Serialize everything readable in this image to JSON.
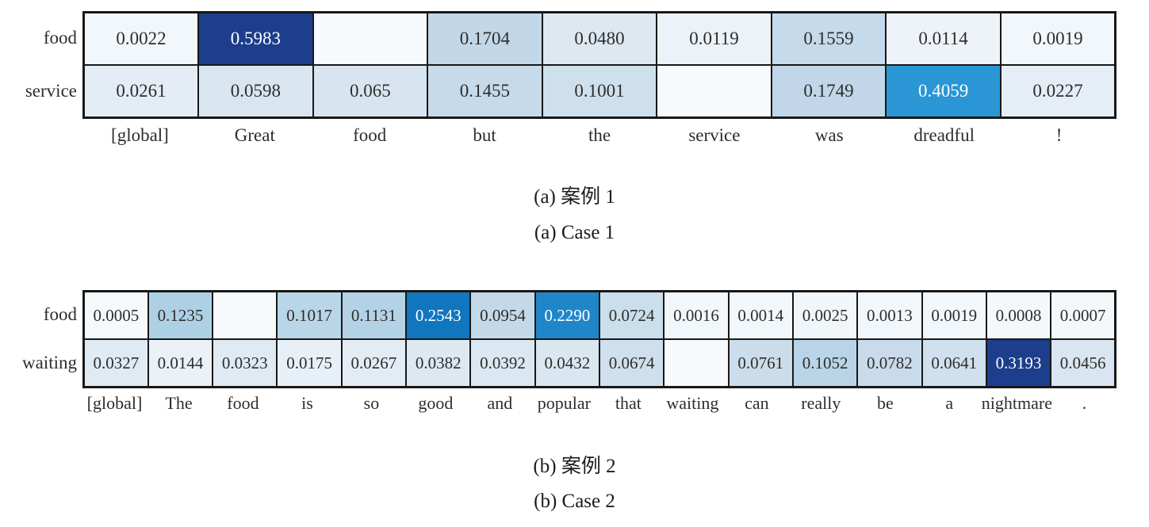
{
  "chart_data": [
    {
      "type": "heatmap",
      "panel": "a",
      "caption_zh": "(a) 案例 1",
      "caption_en": "(a) Case 1",
      "x_labels": [
        "[global]",
        "Great",
        "food",
        "but",
        "the",
        "service",
        "was",
        "dreadful",
        "!"
      ],
      "y_labels": [
        "food",
        "service"
      ],
      "values": [
        [
          0.0022,
          0.5983,
          null,
          0.1704,
          0.048,
          0.0119,
          0.1559,
          0.0114,
          0.0019
        ],
        [
          0.0261,
          0.0598,
          0.065,
          0.1455,
          0.1001,
          null,
          0.1749,
          0.4059,
          0.0227
        ]
      ],
      "value_labels": [
        [
          "0.0022",
          "0.5983",
          "",
          "0.1704",
          "0.0480",
          "0.0119",
          "0.1559",
          "0.0114",
          "0.0019"
        ],
        [
          "0.0261",
          "0.0598",
          "0.065",
          "0.1455",
          "0.1001",
          "",
          "0.1749",
          "0.4059",
          "0.0227"
        ]
      ],
      "cell_colors": [
        [
          "#f2f7fb",
          "#1c3e8c",
          "#f6fafc",
          "#c2d8e9",
          "#dde8f1",
          "#ebf2f8",
          "#c5daea",
          "#edf3f9",
          "#f2f7fb"
        ],
        [
          "#e4edf5",
          "#d9e6f0",
          "#d8e5f0",
          "#c6daea",
          "#cfe0ed",
          "#f6fafc",
          "#c1d7e9",
          "#2a96d5",
          "#e5eef6"
        ]
      ],
      "colormap": "Blues",
      "grid_border_color": "#181818",
      "dark_cell_text_color": "#ffffff",
      "light_cell_text_color": "#2e2d2b"
    },
    {
      "type": "heatmap",
      "panel": "b",
      "caption_zh": "(b) 案例 2",
      "caption_en": "(b) Case 2",
      "x_labels": [
        "[global]",
        "The",
        "food",
        "is",
        "so",
        "good",
        "and",
        "popular",
        "that",
        "waiting",
        "can",
        "really",
        "be",
        "a",
        "nightmare",
        "."
      ],
      "y_labels": [
        "food",
        "waiting"
      ],
      "values": [
        [
          0.0005,
          0.1235,
          null,
          0.1017,
          0.1131,
          0.2543,
          0.0954,
          0.229,
          0.0724,
          0.0016,
          0.0014,
          0.0025,
          0.0013,
          0.0019,
          0.0008,
          0.0007
        ],
        [
          0.0327,
          0.0144,
          0.0323,
          0.0175,
          0.0267,
          0.0382,
          0.0392,
          0.0432,
          0.0674,
          null,
          0.0761,
          0.1052,
          0.0782,
          0.0641,
          0.3193,
          0.0456
        ]
      ],
      "value_labels": [
        [
          "0.0005",
          "0.1235",
          "",
          "0.1017",
          "0.1131",
          "0.2543",
          "0.0954",
          "0.2290",
          "0.0724",
          "0.0016",
          "0.0014",
          "0.0025",
          "0.0013",
          "0.0019",
          "0.0008",
          "0.0007"
        ],
        [
          "0.0327",
          "0.0144",
          "0.0323",
          "0.0175",
          "0.0267",
          "0.0382",
          "0.0392",
          "0.0432",
          "0.0674",
          "",
          "0.0761",
          "0.1052",
          "0.0782",
          "0.0641",
          "0.3193",
          "0.0456"
        ]
      ],
      "cell_colors": [
        [
          "#f5f9fc",
          "#aed0e5",
          "#f6fafc",
          "#b9d5e8",
          "#b3d2e6",
          "#1076be",
          "#c3d9e9",
          "#1f87c9",
          "#cbdeec",
          "#f2f7fb",
          "#f2f7fb",
          "#f1f6fa",
          "#f2f7fb",
          "#f2f7fb",
          "#f4f8fb",
          "#f4f8fb"
        ],
        [
          "#e0eaf3",
          "#eaf1f7",
          "#e0eaf3",
          "#e8f0f7",
          "#e3ecf4",
          "#dde8f1",
          "#dce8f1",
          "#dae6f0",
          "#d0dfed",
          "#f6fafc",
          "#cbdcea",
          "#b9d4e7",
          "#c9dbea",
          "#d1e0ee",
          "#1c3e8c",
          "#d9e5f0"
        ]
      ],
      "colormap": "Blues",
      "grid_border_color": "#181818",
      "dark_cell_text_color": "#ffffff",
      "light_cell_text_color": "#2e2d2b"
    }
  ]
}
